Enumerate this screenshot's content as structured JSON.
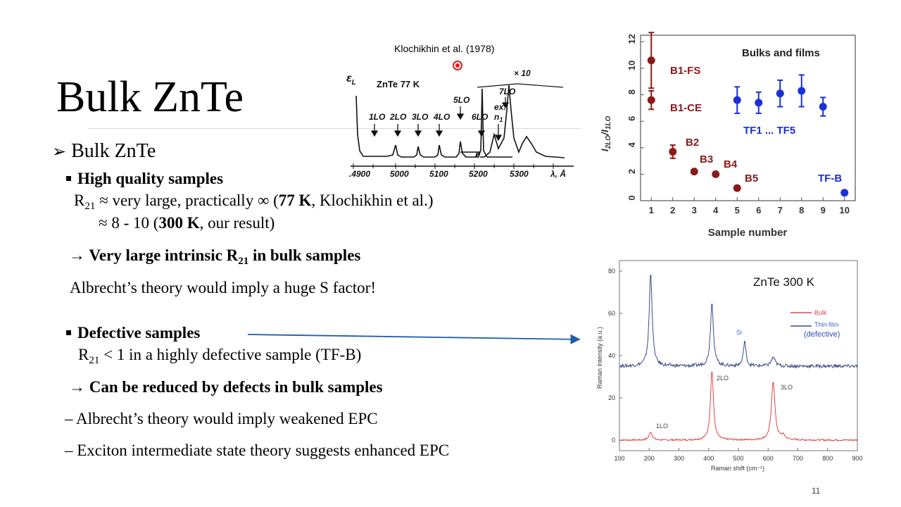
{
  "slide": {
    "title": "Bulk ZnTe",
    "page_number": "11",
    "level1": "Bulk ZnTe",
    "hq_heading": "High quality samples",
    "r_sym": "R",
    "r_sub": "21",
    "hq_line1_a": " ≈ very large, practically ∞ (",
    "hq_line1_b": "77 K",
    "hq_line1_c": ", Klochikhin et al.)",
    "hq_line2_a": "≈ 8 - 10 (",
    "hq_line2_b": "300 K",
    "hq_line2_c": ", our result)",
    "arrow1_a": "→",
    "arrow1_b": " Very large intrinsic R",
    "arrow1_sub": "21",
    "arrow1_c": " in bulk samples",
    "albrecht1": "Albrecht’s theory would imply a huge S factor!",
    "def_heading": "Defective samples",
    "def_line_rest": " < 1 in a highly defective sample (TF-B)",
    "arrow2_a": "→",
    "arrow2_b": " Can be reduced by defects in bulk samples",
    "dash1": "– Albrecht’s theory would imply weakened EPC",
    "dash2": "– Exciton intermediate state theory suggests enhanced EPC"
  },
  "klochikhin": {
    "citation": "Klochikhin et al. (1978)",
    "sample_label": "ZnTe  77 K",
    "axis_start": "ε",
    "axis_start_sub": "L",
    "peaks": [
      "1LO",
      "2LO",
      "3LO",
      "4LO",
      "5LO",
      "6LO",
      "7LO"
    ],
    "exciton": "ex.",
    "exciton_n": "n",
    "exciton_sub": "1",
    "magnification": "× 10",
    "xticks": [
      ".4900",
      "5000",
      "5100",
      "5200",
      "5300"
    ],
    "xunit": "λ, Å"
  },
  "ratio_chart": {
    "chart_data": {
      "type": "scatter",
      "title": "Bulks and films",
      "xlabel": "Sample number",
      "ylabel": "I2LO/I1LO",
      "xlim": [
        0.5,
        10.5
      ],
      "ylim": [
        0,
        12.5
      ],
      "xticks": [
        "1",
        "2",
        "3",
        "4",
        "5",
        "6",
        "7",
        "8",
        "9",
        "10"
      ],
      "yticks": [
        "0",
        "2",
        "4",
        "6",
        "8",
        "10",
        "12"
      ],
      "series": [
        {
          "color": "#8b1a1a",
          "points": [
            {
              "x": 1,
              "y": 10.6,
              "err": 2.1
            },
            {
              "x": 1,
              "y": 7.6,
              "err": 0.7
            },
            {
              "x": 2,
              "y": 3.7,
              "err": 0.5
            },
            {
              "x": 3,
              "y": 2.2,
              "err": 0.1
            },
            {
              "x": 4,
              "y": 2.0,
              "err": 0.1
            },
            {
              "x": 5,
              "y": 0.95,
              "err": 0.1
            }
          ]
        },
        {
          "color": "#1a30d8",
          "points": [
            {
              "x": 5,
              "y": 7.6,
              "err": 1.0
            },
            {
              "x": 6,
              "y": 7.4,
              "err": 0.8
            },
            {
              "x": 7,
              "y": 8.1,
              "err": 1.0
            },
            {
              "x": 8,
              "y": 8.3,
              "err": 1.2
            },
            {
              "x": 9,
              "y": 7.1,
              "err": 0.7
            },
            {
              "x": 10,
              "y": 0.6,
              "err": 0.05
            }
          ]
        }
      ],
      "labels": {
        "b1fs": "B1-FS",
        "b1ce": "B1-CE",
        "b2": "B2",
        "b3": "B3",
        "b4": "B4",
        "b5": "B5",
        "tf": "TF1 ... TF5",
        "tfb": "TF-B"
      }
    }
  },
  "raman_chart": {
    "chart_data": {
      "type": "line",
      "title": "ZnTe 300 K",
      "xlabel": "Raman shift (cm⁻¹)",
      "ylabel": "Raman intensity (a.u.)",
      "xlim": [
        100,
        900
      ],
      "ylim": [
        -5,
        85
      ],
      "xticks": [
        "100",
        "200",
        "300",
        "400",
        "500",
        "600",
        "700",
        "800",
        "900"
      ],
      "yticks": [
        "0",
        "20",
        "40",
        "60",
        "80"
      ],
      "series": [
        {
          "name": "Bulk",
          "color": "#e0454a",
          "baseline": 0,
          "peaks": [
            {
              "x": 205,
              "height": 4,
              "width": 6
            },
            {
              "x": 411,
              "height": 33,
              "width": 6
            },
            {
              "x": 617,
              "height": 28,
              "width": 7
            },
            {
              "x": 650,
              "height": 2,
              "width": 8
            }
          ]
        },
        {
          "name": "Thin-film",
          "color": "#3a4a8a",
          "baseline": 35,
          "peaks": [
            {
              "x": 205,
              "height": 44,
              "width": 6
            },
            {
              "x": 411,
              "height": 30,
              "width": 6
            },
            {
              "x": 521,
              "height": 12,
              "width": 5
            },
            {
              "x": 617,
              "height": 4,
              "width": 8
            }
          ]
        }
      ],
      "annotations": {
        "lo1": "1LO",
        "lo2": "2LO",
        "lo3": "3LO",
        "si": "Si",
        "defective": "(defective)"
      }
    }
  }
}
